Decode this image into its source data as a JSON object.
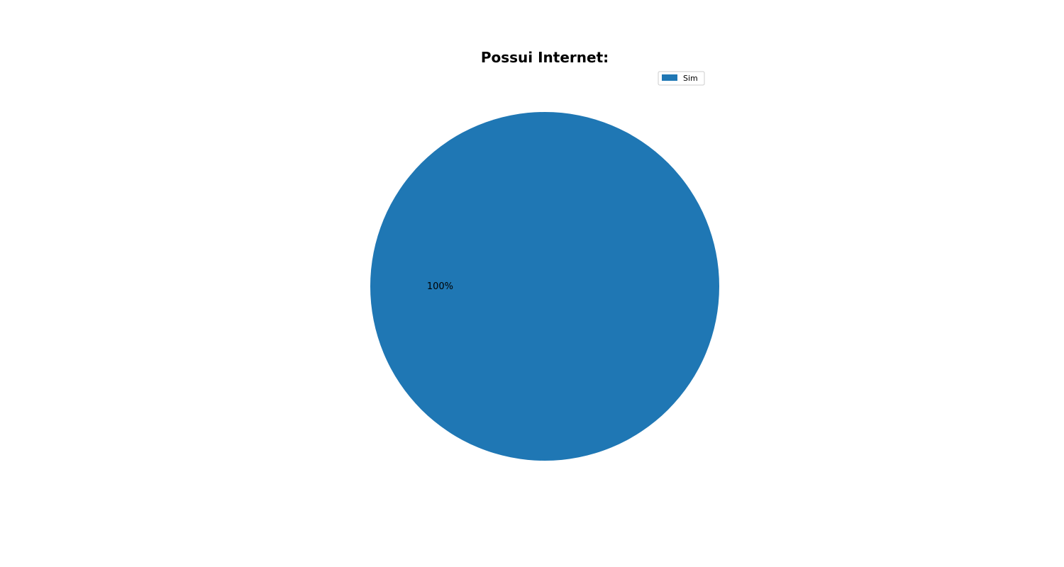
{
  "chart_data": {
    "type": "pie",
    "title": "Possui Internet:",
    "labels": [
      "Sim"
    ],
    "values": [
      100
    ],
    "percent_labels": [
      "100%"
    ],
    "colors": [
      "#1f77b4"
    ],
    "legend_placement": "upper-right"
  }
}
